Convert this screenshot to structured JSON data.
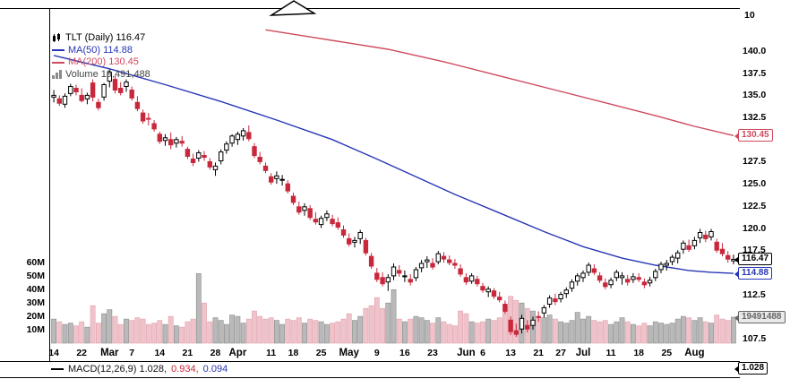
{
  "chart_data": {
    "type": "candlestick",
    "symbol": "TLT",
    "timeframe": "Daily",
    "title": "TLT (Daily) 116.47",
    "last_price": 116.47,
    "grid": false,
    "ylim": [
      107.5,
      140.0
    ],
    "volume_ylim_millions": [
      0,
      60
    ],
    "legend": {
      "title": "TLT (Daily) 116.47",
      "ma50": "MA(50) 114.88",
      "ma200": "MA(200) 130.45",
      "volume": "Volume 19,491,488"
    },
    "colors": {
      "candle_down": "#c9283c",
      "candle_up_border": "#000000",
      "ma50": "#2736b5",
      "ma200": "#cf4a5e",
      "vol_up": "#b9b9b9",
      "vol_up_border": "#8a8a8a",
      "vol_down": "#f0c3ca",
      "vol_down_border": "#dfa2ad",
      "tag_volume": "#666666",
      "tag_last": "#000000"
    },
    "upper_panel": {
      "tick_label": "10"
    },
    "price_ticks": [
      {
        "label": "140.0",
        "value": 140.0
      },
      {
        "label": "137.5",
        "value": 137.5
      },
      {
        "label": "135.0",
        "value": 135.0
      },
      {
        "label": "132.5",
        "value": 132.5
      },
      {
        "label": "127.5",
        "value": 127.5
      },
      {
        "label": "125.0",
        "value": 125.0
      },
      {
        "label": "122.5",
        "value": 122.5
      },
      {
        "label": "120.0",
        "value": 120.0
      },
      {
        "label": "117.5",
        "value": 117.5
      },
      {
        "label": "112.5",
        "value": 112.5
      },
      {
        "label": "107.5",
        "value": 107.5
      }
    ],
    "volume_ticks": [
      {
        "label": "60M",
        "value": 60
      },
      {
        "label": "50M",
        "value": 50
      },
      {
        "label": "40M",
        "value": 40
      },
      {
        "label": "30M",
        "value": 30
      },
      {
        "label": "20M",
        "value": 20
      },
      {
        "label": "10M",
        "value": 10
      }
    ],
    "x_ticks": [
      {
        "label": "14",
        "i": 0
      },
      {
        "label": "22",
        "i": 5
      },
      {
        "label": "Mar",
        "i": 10,
        "month": true
      },
      {
        "label": "7",
        "i": 14
      },
      {
        "label": "14",
        "i": 19
      },
      {
        "label": "21",
        "i": 24
      },
      {
        "label": "28",
        "i": 29
      },
      {
        "label": "Apr",
        "i": 33,
        "month": true
      },
      {
        "label": "11",
        "i": 39
      },
      {
        "label": "18",
        "i": 43
      },
      {
        "label": "25",
        "i": 48
      },
      {
        "label": "May",
        "i": 53,
        "month": true
      },
      {
        "label": "9",
        "i": 58
      },
      {
        "label": "16",
        "i": 63
      },
      {
        "label": "23",
        "i": 68
      },
      {
        "label": "Jun",
        "i": 74,
        "month": true
      },
      {
        "label": "6",
        "i": 77
      },
      {
        "label": "13",
        "i": 82
      },
      {
        "label": "21",
        "i": 87
      },
      {
        "label": "27",
        "i": 91
      },
      {
        "label": "Jul",
        "i": 95,
        "month": true
      },
      {
        "label": "11",
        "i": 100
      },
      {
        "label": "18",
        "i": 105
      },
      {
        "label": "25",
        "i": 110
      },
      {
        "label": "Aug",
        "i": 115,
        "month": true
      }
    ],
    "candle_fields": [
      "open",
      "high",
      "low",
      "close",
      "volume_millions"
    ],
    "candles": [
      [
        134.8,
        135.6,
        134.2,
        135.0,
        18
      ],
      [
        134.6,
        135.0,
        133.8,
        134.1,
        16
      ],
      [
        134.0,
        135.2,
        133.6,
        134.9,
        14
      ],
      [
        135.2,
        136.3,
        134.9,
        136.0,
        15
      ],
      [
        135.8,
        136.2,
        135.0,
        135.4,
        13
      ],
      [
        135.0,
        135.8,
        134.2,
        134.4,
        16
      ],
      [
        134.6,
        135.3,
        134.0,
        135.0,
        12
      ],
      [
        136.4,
        136.8,
        134.3,
        134.8,
        28
      ],
      [
        134.2,
        134.6,
        133.3,
        133.6,
        15
      ],
      [
        134.8,
        136.4,
        134.4,
        136.2,
        22
      ],
      [
        136.6,
        137.9,
        135.9,
        137.6,
        25
      ],
      [
        136.8,
        137.2,
        135.2,
        135.6,
        20
      ],
      [
        135.8,
        136.5,
        135.0,
        135.3,
        14
      ],
      [
        136.0,
        136.8,
        135.4,
        136.5,
        18
      ],
      [
        135.6,
        136.0,
        134.4,
        134.7,
        17
      ],
      [
        134.2,
        134.9,
        133.2,
        133.5,
        19
      ],
      [
        133.0,
        133.4,
        131.8,
        132.1,
        18
      ],
      [
        132.4,
        133.0,
        131.6,
        132.3,
        14
      ],
      [
        131.8,
        132.2,
        130.9,
        131.2,
        15
      ],
      [
        130.6,
        130.9,
        129.5,
        129.8,
        17
      ],
      [
        129.9,
        130.6,
        129.3,
        130.2,
        14
      ],
      [
        130.0,
        130.8,
        128.9,
        129.4,
        20
      ],
      [
        129.6,
        130.3,
        129.1,
        130.0,
        13
      ],
      [
        129.8,
        130.4,
        129.2,
        129.6,
        12
      ],
      [
        128.9,
        129.2,
        127.8,
        128.1,
        16
      ],
      [
        127.8,
        128.4,
        127.0,
        127.4,
        18
      ],
      [
        127.9,
        128.8,
        127.5,
        128.5,
        52
      ],
      [
        128.2,
        128.7,
        127.6,
        128.0,
        30
      ],
      [
        127.5,
        127.9,
        126.6,
        126.9,
        16
      ],
      [
        126.6,
        127.4,
        125.9,
        127.0,
        19
      ],
      [
        127.6,
        128.9,
        127.2,
        128.6,
        17
      ],
      [
        128.8,
        129.8,
        128.4,
        129.5,
        14
      ],
      [
        129.6,
        130.6,
        129.2,
        130.4,
        21
      ],
      [
        130.0,
        130.9,
        129.4,
        130.6,
        20
      ],
      [
        130.4,
        131.3,
        129.9,
        131.0,
        15
      ],
      [
        130.8,
        131.6,
        129.8,
        130.1,
        18
      ],
      [
        129.2,
        129.6,
        127.9,
        128.2,
        24
      ],
      [
        128.0,
        128.6,
        127.2,
        127.5,
        20
      ],
      [
        127.0,
        127.4,
        126.2,
        126.5,
        18
      ],
      [
        125.8,
        126.2,
        124.9,
        125.2,
        19
      ],
      [
        125.6,
        126.4,
        125.0,
        125.9,
        17
      ],
      [
        125.4,
        126.0,
        124.8,
        125.5,
        14
      ],
      [
        125.0,
        125.4,
        123.9,
        124.2,
        18
      ],
      [
        123.6,
        124.0,
        122.6,
        122.9,
        17
      ],
      [
        122.4,
        123.0,
        121.5,
        121.8,
        19
      ],
      [
        122.0,
        122.8,
        121.4,
        122.4,
        15
      ],
      [
        122.2,
        122.6,
        120.9,
        121.2,
        18
      ],
      [
        121.0,
        121.8,
        120.4,
        120.7,
        17
      ],
      [
        120.4,
        121.4,
        120.0,
        121.1,
        16
      ],
      [
        121.2,
        122.0,
        120.8,
        121.6,
        14
      ],
      [
        121.0,
        121.5,
        120.2,
        120.5,
        15
      ],
      [
        120.6,
        121.2,
        119.8,
        120.1,
        16
      ],
      [
        119.8,
        120.3,
        118.9,
        119.2,
        18
      ],
      [
        118.8,
        119.4,
        117.9,
        118.2,
        22
      ],
      [
        118.4,
        119.0,
        117.8,
        118.6,
        17
      ],
      [
        118.8,
        119.8,
        118.2,
        119.5,
        20
      ],
      [
        118.6,
        118.9,
        116.9,
        117.2,
        26
      ],
      [
        116.8,
        117.2,
        115.4,
        115.7,
        28
      ],
      [
        114.9,
        115.5,
        113.9,
        114.2,
        34
      ],
      [
        114.4,
        115.0,
        113.4,
        113.7,
        26
      ],
      [
        113.9,
        114.8,
        112.9,
        114.4,
        30
      ],
      [
        114.6,
        116.0,
        114.1,
        115.6,
        40
      ],
      [
        115.2,
        115.8,
        114.5,
        114.9,
        18
      ],
      [
        114.6,
        115.2,
        113.9,
        114.6,
        16
      ],
      [
        114.2,
        114.8,
        113.5,
        113.9,
        18
      ],
      [
        114.4,
        115.6,
        114.0,
        115.3,
        20
      ],
      [
        115.5,
        116.4,
        115.0,
        116.0,
        19
      ],
      [
        116.2,
        116.8,
        115.5,
        116.4,
        17
      ],
      [
        116.0,
        116.6,
        115.3,
        115.6,
        15
      ],
      [
        116.2,
        117.4,
        115.9,
        117.1,
        19
      ],
      [
        116.8,
        117.3,
        116.1,
        116.5,
        16
      ],
      [
        116.4,
        116.9,
        115.8,
        116.1,
        14
      ],
      [
        116.0,
        116.5,
        115.4,
        115.8,
        13
      ],
      [
        115.4,
        115.9,
        114.5,
        114.8,
        24
      ],
      [
        114.4,
        114.9,
        113.6,
        113.9,
        22
      ],
      [
        114.0,
        114.9,
        113.7,
        114.6,
        16
      ],
      [
        114.2,
        114.6,
        113.4,
        113.7,
        15
      ],
      [
        113.4,
        113.8,
        112.7,
        113.0,
        16
      ],
      [
        112.8,
        113.4,
        112.2,
        113.1,
        18
      ],
      [
        112.9,
        113.2,
        112.0,
        112.3,
        17
      ],
      [
        112.2,
        112.8,
        111.6,
        111.9,
        19
      ],
      [
        111.4,
        111.8,
        110.3,
        110.6,
        28
      ],
      [
        109.6,
        110.0,
        107.9,
        108.3,
        35
      ],
      [
        108.4,
        109.2,
        107.7,
        108.0,
        32
      ],
      [
        108.6,
        110.2,
        108.1,
        109.8,
        30
      ],
      [
        109.0,
        109.6,
        108.2,
        108.6,
        26
      ],
      [
        109.0,
        110.0,
        108.5,
        109.6,
        24
      ],
      [
        110.0,
        110.6,
        109.4,
        109.9,
        20
      ],
      [
        110.4,
        111.3,
        109.9,
        111.0,
        19
      ],
      [
        111.4,
        112.4,
        111.0,
        112.1,
        21
      ],
      [
        112.0,
        112.6,
        111.3,
        111.7,
        18
      ],
      [
        112.0,
        112.8,
        111.6,
        112.5,
        16
      ],
      [
        112.6,
        113.3,
        112.1,
        113.0,
        15
      ],
      [
        113.2,
        114.2,
        112.8,
        113.9,
        17
      ],
      [
        114.0,
        114.9,
        113.5,
        114.6,
        23
      ],
      [
        114.4,
        115.2,
        113.9,
        114.9,
        18
      ],
      [
        115.0,
        116.1,
        114.6,
        115.8,
        20
      ],
      [
        115.4,
        115.9,
        114.7,
        115.0,
        17
      ],
      [
        114.6,
        115.0,
        113.8,
        114.1,
        16
      ],
      [
        113.8,
        114.3,
        113.1,
        113.4,
        17
      ],
      [
        113.6,
        114.4,
        113.2,
        114.1,
        14
      ],
      [
        114.4,
        115.3,
        114.0,
        115.0,
        16
      ],
      [
        114.4,
        115.0,
        113.6,
        114.6,
        19
      ],
      [
        114.2,
        114.7,
        113.5,
        113.9,
        16
      ],
      [
        114.2,
        114.9,
        113.8,
        114.5,
        14
      ],
      [
        114.4,
        114.9,
        113.9,
        114.2,
        13
      ],
      [
        113.9,
        114.3,
        113.2,
        113.6,
        15
      ],
      [
        113.8,
        114.5,
        113.4,
        114.1,
        13
      ],
      [
        114.4,
        115.4,
        114.0,
        115.1,
        16
      ],
      [
        115.3,
        116.2,
        114.9,
        115.9,
        15
      ],
      [
        115.8,
        116.4,
        115.2,
        116.0,
        14
      ],
      [
        116.2,
        117.0,
        115.8,
        116.7,
        15
      ],
      [
        116.6,
        117.5,
        116.0,
        117.2,
        18
      ],
      [
        117.6,
        118.6,
        117.1,
        118.3,
        20
      ],
      [
        118.0,
        118.7,
        117.3,
        117.6,
        19
      ],
      [
        118.0,
        119.0,
        117.6,
        118.6,
        17
      ],
      [
        118.9,
        119.9,
        118.3,
        119.5,
        19
      ],
      [
        119.2,
        119.7,
        118.4,
        118.8,
        16
      ],
      [
        119.0,
        119.9,
        118.6,
        119.6,
        15
      ],
      [
        118.4,
        118.8,
        117.2,
        117.5,
        21
      ],
      [
        117.6,
        118.3,
        116.8,
        117.1,
        18
      ],
      [
        116.9,
        117.4,
        116.1,
        116.5,
        17
      ],
      [
        116.3,
        117.0,
        115.9,
        116.47,
        19.49
      ]
    ],
    "ma50": {
      "value": 114.88,
      "points": [
        [
          0,
          139.5
        ],
        [
          10,
          138.0
        ],
        [
          20,
          136.2
        ],
        [
          30,
          134.3
        ],
        [
          40,
          132.2
        ],
        [
          50,
          130.0
        ],
        [
          58,
          127.8
        ],
        [
          65,
          125.8
        ],
        [
          72,
          123.8
        ],
        [
          80,
          121.7
        ],
        [
          88,
          119.6
        ],
        [
          95,
          117.9
        ],
        [
          102,
          116.6
        ],
        [
          108,
          115.8
        ],
        [
          114,
          115.2
        ],
        [
          118,
          115.0
        ],
        [
          122,
          114.88
        ]
      ]
    },
    "ma200": {
      "value": 130.45,
      "points": [
        [
          38,
          142.4
        ],
        [
          45,
          141.7
        ],
        [
          52,
          141.0
        ],
        [
          60,
          140.2
        ],
        [
          70,
          138.8
        ],
        [
          80,
          137.2
        ],
        [
          90,
          135.6
        ],
        [
          100,
          134.0
        ],
        [
          108,
          132.7
        ],
        [
          115,
          131.5
        ],
        [
          122,
          130.45
        ]
      ]
    },
    "price_tags": [
      {
        "label": "130.45",
        "price": 130.45,
        "style": "ma200"
      },
      {
        "label": "116.47",
        "price": 116.47,
        "style": "last"
      },
      {
        "label": "114.88",
        "price": 114.88,
        "style": "ma50"
      },
      {
        "label": "19491488",
        "volume_millions": 19.49,
        "style": "volume"
      }
    ],
    "macd": {
      "label": "MACD(12,26,9) 1.028,",
      "signal": "0.934,",
      "hist": "0.094",
      "tag": "1.028"
    }
  }
}
